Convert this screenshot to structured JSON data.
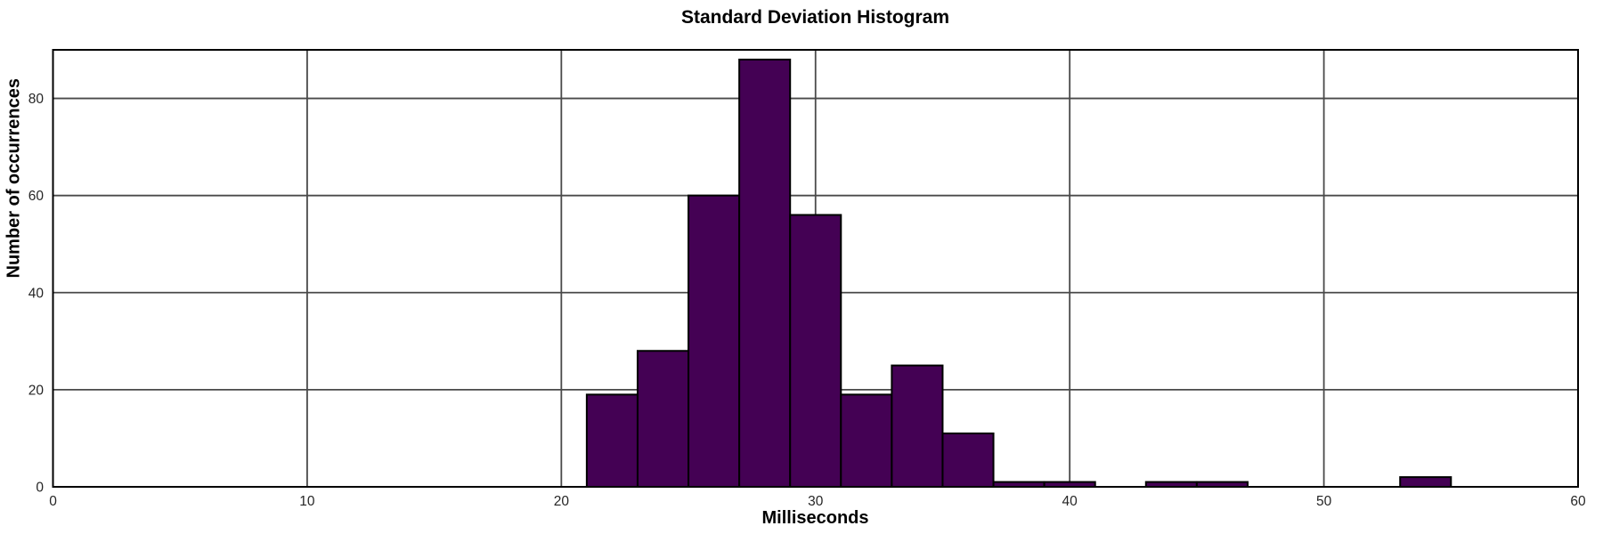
{
  "chart_data": {
    "type": "bar",
    "subtype": "histogram",
    "title": "Standard Deviation Histogram",
    "xlabel": "Milliseconds",
    "ylabel": "Number of occurrences",
    "bin_edges": [
      21,
      23,
      25,
      27,
      29,
      31,
      33,
      35,
      37,
      39,
      41,
      43,
      45,
      47,
      49,
      51,
      53,
      55
    ],
    "counts": [
      19,
      28,
      60,
      88,
      56,
      19,
      25,
      11,
      1,
      1,
      0,
      1,
      1,
      0,
      0,
      0,
      2
    ],
    "xlim": [
      0,
      60
    ],
    "ylim": [
      0,
      90
    ],
    "xticks": [
      0,
      10,
      20,
      30,
      40,
      50,
      60
    ],
    "yticks": [
      0,
      20,
      40,
      60,
      80
    ],
    "grid": true,
    "legend": false,
    "colors": {
      "bar_fill": "#440154",
      "bar_edge": "#000000",
      "grid_line": "#4a4a4a",
      "axis_box": "#000000",
      "tick_text": "#262626"
    }
  }
}
